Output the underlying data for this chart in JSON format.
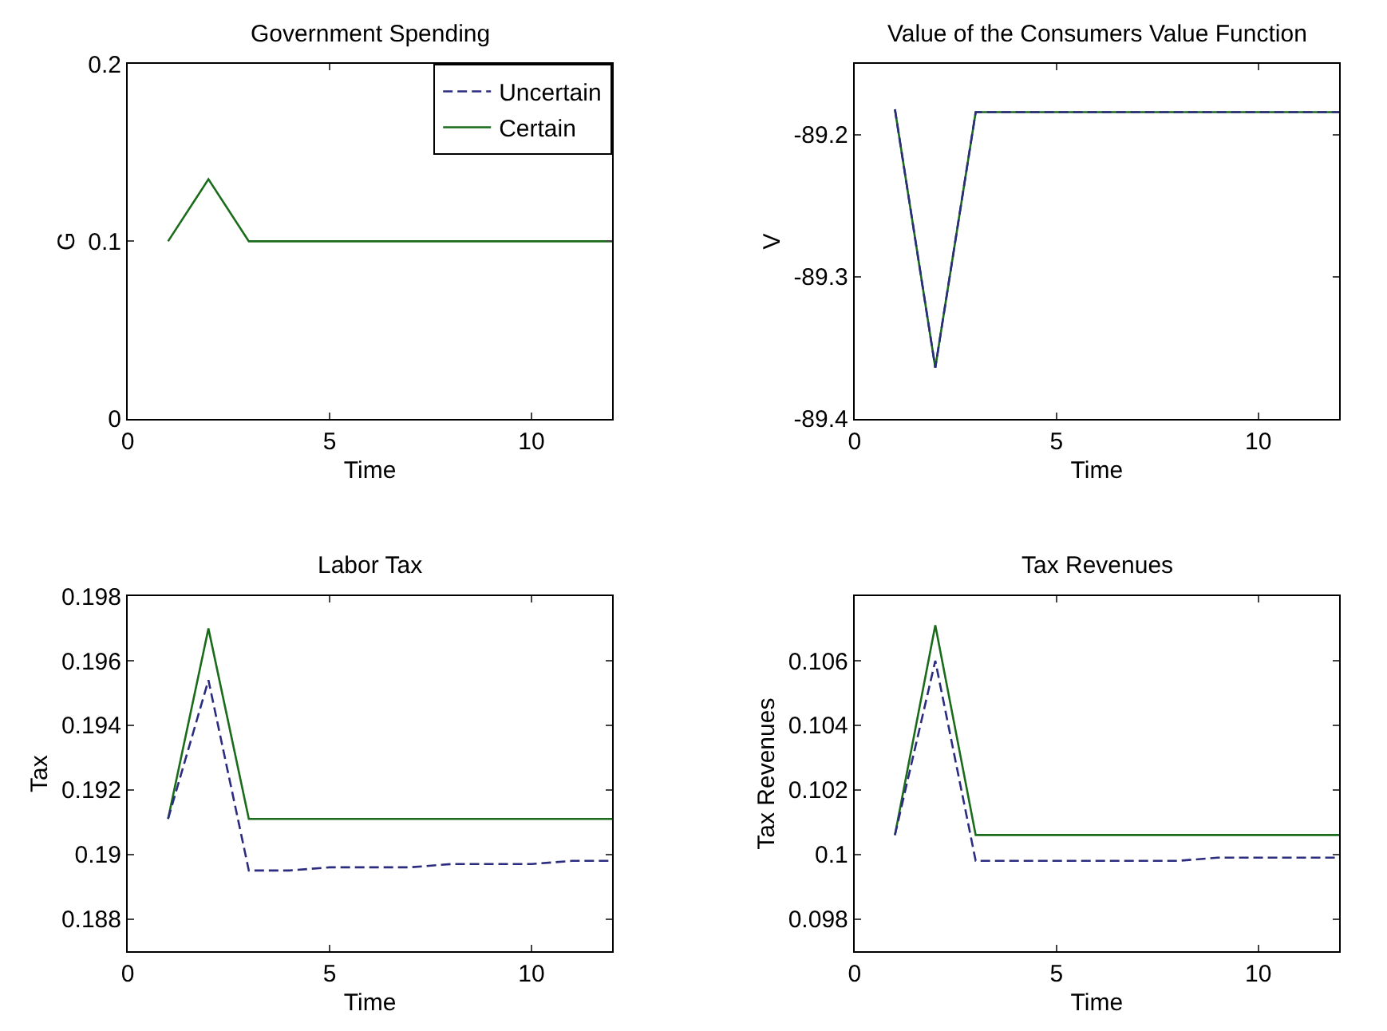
{
  "chart_data": [
    {
      "type": "line",
      "title": "Government Spending",
      "xlabel": "Time",
      "ylabel": "G",
      "x": [
        1,
        2,
        3,
        4,
        5,
        6,
        7,
        8,
        9,
        10,
        11,
        12
      ],
      "xlim": [
        0,
        12
      ],
      "xticks": [
        0,
        5,
        10
      ],
      "ylim": [
        0,
        0.2
      ],
      "yticks": [
        0,
        0.1,
        0.2
      ],
      "legend": "top right",
      "series": [
        {
          "name": "Uncertain",
          "color": "#2b2b80",
          "line_style": "dashed",
          "values": [
            null,
            null,
            null,
            null,
            null,
            null,
            null,
            null,
            null,
            null,
            null,
            null
          ]
        },
        {
          "name": "Certain",
          "color": "#1a6b1a",
          "line_style": "solid",
          "values": [
            0.1,
            0.135,
            0.1,
            0.1,
            0.1,
            0.1,
            0.1,
            0.1,
            0.1,
            0.1,
            0.1,
            0.1
          ]
        }
      ]
    },
    {
      "type": "line",
      "title": "Value of the Consumers Value Function",
      "xlabel": "Time",
      "ylabel": "V",
      "x": [
        1,
        2,
        3,
        4,
        5,
        6,
        7,
        8,
        9,
        10,
        11,
        12
      ],
      "xlim": [
        0,
        12
      ],
      "xticks": [
        0,
        5,
        10
      ],
      "ylim": [
        -89.4,
        -89.15
      ],
      "yticks": [
        -89.4,
        -89.3,
        -89.2
      ],
      "series": [
        {
          "color": "#1a6b1a",
          "line_style": "solid",
          "values": [
            -89.182,
            -89.364,
            -89.184,
            -89.184,
            -89.184,
            -89.184,
            -89.184,
            -89.184,
            -89.184,
            -89.184,
            -89.184,
            -89.184
          ]
        },
        {
          "color": "#2b2b80",
          "line_style": "dashed",
          "values": [
            -89.182,
            -89.364,
            -89.184,
            -89.184,
            -89.184,
            -89.184,
            -89.184,
            -89.184,
            -89.184,
            -89.184,
            -89.184,
            -89.184
          ]
        }
      ]
    },
    {
      "type": "line",
      "title": "Labor Tax",
      "xlabel": "Time",
      "ylabel": "Tax",
      "x": [
        1,
        2,
        3,
        4,
        5,
        6,
        7,
        8,
        9,
        10,
        11,
        12
      ],
      "xlim": [
        0,
        12
      ],
      "xticks": [
        0,
        5,
        10
      ],
      "ylim": [
        0.187,
        0.198
      ],
      "yticks": [
        0.188,
        0.19,
        0.192,
        0.194,
        0.196,
        0.198
      ],
      "series": [
        {
          "color": "#2b2b80",
          "line_style": "dashed",
          "values": [
            0.1911,
            0.1954,
            0.1895,
            0.1895,
            0.1896,
            0.1896,
            0.1896,
            0.1897,
            0.1897,
            0.1897,
            0.1898,
            0.1898
          ]
        },
        {
          "color": "#1a6b1a",
          "line_style": "solid",
          "values": [
            0.1911,
            0.197,
            0.1911,
            0.1911,
            0.1911,
            0.1911,
            0.1911,
            0.1911,
            0.1911,
            0.1911,
            0.1911,
            0.1911
          ]
        }
      ]
    },
    {
      "type": "line",
      "title": "Tax Revenues",
      "xlabel": "Time",
      "ylabel": "Tax Revenues",
      "x": [
        1,
        2,
        3,
        4,
        5,
        6,
        7,
        8,
        9,
        10,
        11,
        12
      ],
      "xlim": [
        0,
        12
      ],
      "xticks": [
        0,
        5,
        10
      ],
      "ylim": [
        0.097,
        0.108
      ],
      "yticks": [
        0.098,
        0.1,
        0.102,
        0.104,
        0.106
      ],
      "series": [
        {
          "color": "#2b2b80",
          "line_style": "dashed",
          "values": [
            0.1006,
            0.106,
            0.0998,
            0.0998,
            0.0998,
            0.0998,
            0.0998,
            0.0998,
            0.0999,
            0.0999,
            0.0999,
            0.0999
          ]
        },
        {
          "color": "#1a6b1a",
          "line_style": "solid",
          "values": [
            0.1006,
            0.1071,
            0.1006,
            0.1006,
            0.1006,
            0.1006,
            0.1006,
            0.1006,
            0.1006,
            0.1006,
            0.1006,
            0.1006
          ]
        }
      ]
    }
  ]
}
